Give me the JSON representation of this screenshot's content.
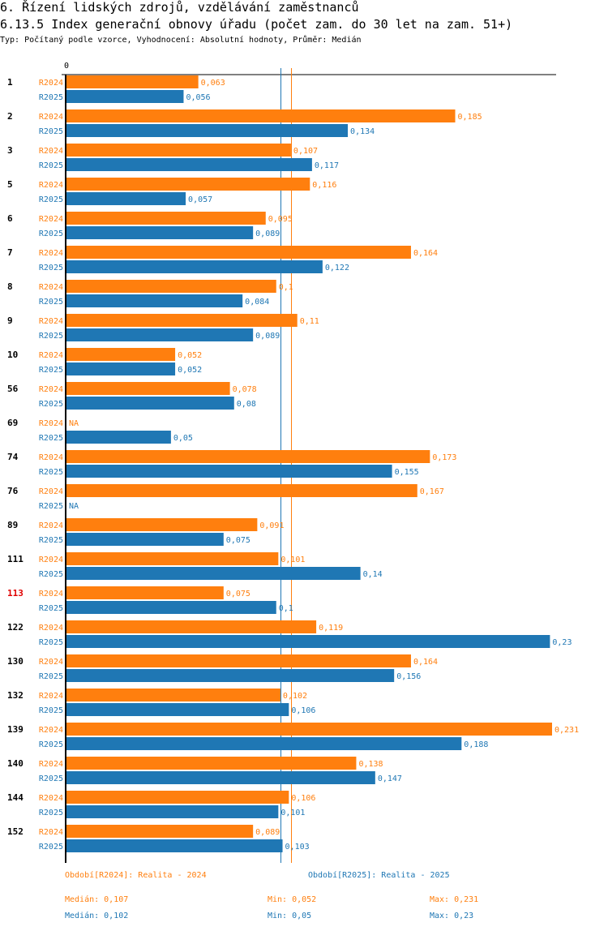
{
  "header": {
    "title": "6. Řízení lidských zdrojů, vzdělávání zaměstnanců",
    "subtitle": "6.13.5 Index generační obnovy úřadu (počet zam. do 30 let na zam. 51+)",
    "info": "Typ: Počítaný podle vzorce, Vyhodnocení: Absolutní hodnoty, Průměr: Medián"
  },
  "chart_data": {
    "type": "bar",
    "orientation": "horizontal",
    "title": "6.13.5 Index generační obnovy úřadu (počet zam. do 30 let na zam. 51+)",
    "axis_zero_label": "0",
    "xlim": [
      0,
      0.231
    ],
    "highlight_category": "113",
    "colors": {
      "R2024": "#ff7f0e",
      "R2025": "#1f77b4",
      "highlight": "#e00000"
    },
    "categories": [
      "1",
      "2",
      "3",
      "5",
      "6",
      "7",
      "8",
      "9",
      "10",
      "56",
      "69",
      "74",
      "76",
      "89",
      "111",
      "113",
      "122",
      "130",
      "132",
      "139",
      "140",
      "144",
      "152"
    ],
    "series": [
      {
        "name": "R2024",
        "values": [
          0.063,
          0.185,
          0.107,
          0.116,
          0.095,
          0.164,
          0.1,
          0.11,
          0.052,
          0.078,
          null,
          0.173,
          0.167,
          0.091,
          0.101,
          0.075,
          0.119,
          0.164,
          0.102,
          0.231,
          0.138,
          0.106,
          0.089
        ],
        "labels": [
          "0,063",
          "0,185",
          "0,107",
          "0,116",
          "0,095",
          "0,164",
          "0,1",
          "0,11",
          "0,052",
          "0,078",
          "NA",
          "0,173",
          "0,167",
          "0,091",
          "0,101",
          "0,075",
          "0,119",
          "0,164",
          "0,102",
          "0,231",
          "0,138",
          "0,106",
          "0,089"
        ]
      },
      {
        "name": "R2025",
        "values": [
          0.056,
          0.134,
          0.117,
          0.057,
          0.089,
          0.122,
          0.084,
          0.089,
          0.052,
          0.08,
          0.05,
          0.155,
          null,
          0.075,
          0.14,
          0.1,
          0.23,
          0.156,
          0.106,
          0.188,
          0.147,
          0.101,
          0.103
        ],
        "labels": [
          "0,056",
          "0,134",
          "0,117",
          "0,057",
          "0,089",
          "0,122",
          "0,084",
          "0,089",
          "0,052",
          "0,08",
          "0,05",
          "0,155",
          "NA",
          "0,075",
          "0,14",
          "0,1",
          "0,23",
          "0,156",
          "0,106",
          "0,188",
          "0,147",
          "0,101",
          "0,103"
        ]
      }
    ],
    "median_lines": {
      "R2024": 0.107,
      "R2025": 0.102
    }
  },
  "legend": {
    "r2024": "Období[R2024]: Realita - 2024",
    "r2025": "Období[R2025]: Realita - 2025"
  },
  "stats": {
    "r2024": {
      "median": "Medián: 0,107",
      "min": "Min: 0,052",
      "max": "Max: 0,231"
    },
    "r2025": {
      "median": "Medián: 0,102",
      "min": "Min: 0,05",
      "max": "Max: 0,23"
    }
  }
}
